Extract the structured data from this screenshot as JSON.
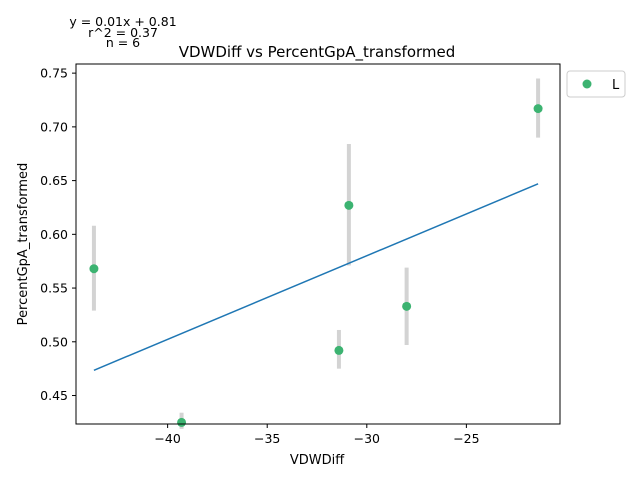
{
  "chart_data": {
    "type": "scatter",
    "title": "VDWDiff vs PercentGpA_transformed",
    "xlabel": "VDWDiff",
    "ylabel": "PercentGpA_transformed",
    "xlim": [
      -44.6,
      -20.3
    ],
    "ylim": [
      0.4235,
      0.7585
    ],
    "xticks": [
      -40,
      -35,
      -30,
      -25
    ],
    "yticks": [
      0.45,
      0.5,
      0.55,
      0.6,
      0.65,
      0.7,
      0.75
    ],
    "xtick_labels": [
      "−40",
      "−35",
      "−30",
      "−25"
    ],
    "ytick_labels": [
      "0.45",
      "0.50",
      "0.55",
      "0.60",
      "0.65",
      "0.70",
      "0.75"
    ],
    "grid": false,
    "legend_placement": "outside-top-right",
    "annotations": {
      "equation": "y = 0.01x + 0.81",
      "r2": "r^2 = 0.37",
      "n": "n = 6"
    },
    "series": [
      {
        "name": "L",
        "color": "#3cb371",
        "points": [
          {
            "x": -43.7,
            "y": 0.568,
            "ylow": 0.529,
            "yhigh": 0.608
          },
          {
            "x": -39.3,
            "y": 0.425,
            "ylow": 0.419,
            "yhigh": 0.434
          },
          {
            "x": -31.4,
            "y": 0.492,
            "ylow": 0.475,
            "yhigh": 0.511
          },
          {
            "x": -30.9,
            "y": 0.627,
            "ylow": 0.571,
            "yhigh": 0.684
          },
          {
            "x": -28.0,
            "y": 0.533,
            "ylow": 0.497,
            "yhigh": 0.569
          },
          {
            "x": -21.4,
            "y": 0.717,
            "ylow": 0.69,
            "yhigh": 0.745
          }
        ]
      }
    ],
    "fit_line": {
      "color": "#1f77b4",
      "x": [
        -43.7,
        -21.4
      ],
      "y": [
        0.4735,
        0.647
      ]
    },
    "errorbar_color": "#d3d3d3",
    "axis_color": "#000000"
  }
}
